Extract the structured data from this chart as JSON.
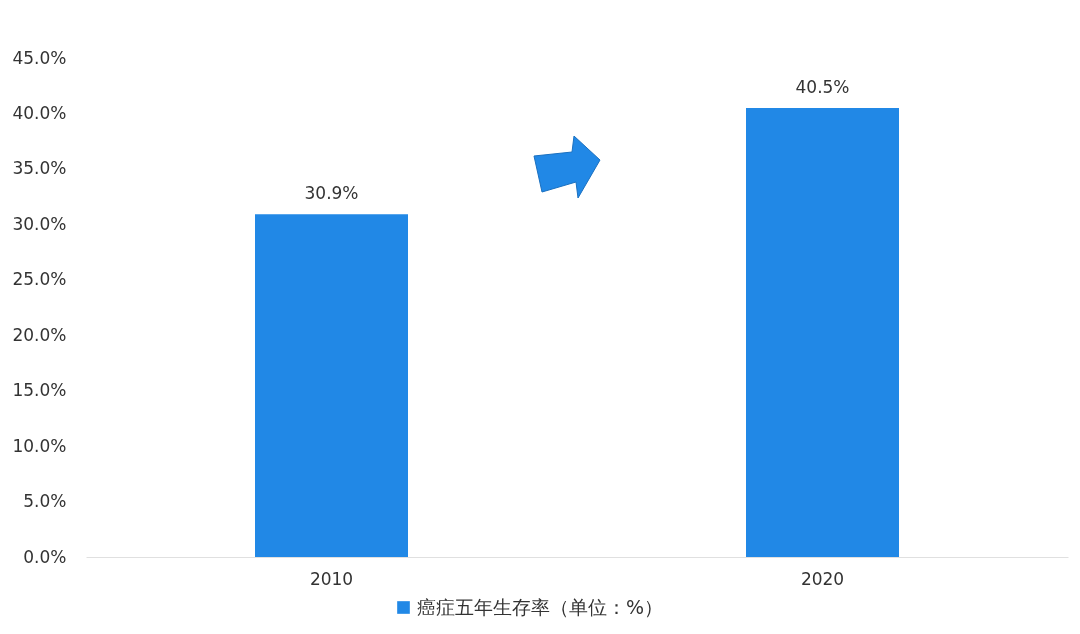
{
  "chart_data": {
    "type": "bar",
    "categories": [
      "2010",
      "2020"
    ],
    "series": [
      {
        "name": "癌症五年生存率（单位：%）",
        "color": "#2188e6",
        "values": [
          30.9,
          40.5
        ],
        "value_labels": [
          "30.9%",
          "40.5%"
        ]
      }
    ],
    "ylim": [
      0,
      45
    ],
    "yticks": [
      {
        "value": 0,
        "label": "0.0%"
      },
      {
        "value": 5,
        "label": "5.0%"
      },
      {
        "value": 10,
        "label": "10.0%"
      },
      {
        "value": 15,
        "label": "15.0%"
      },
      {
        "value": 20,
        "label": "20.0%"
      },
      {
        "value": 25,
        "label": "25.0%"
      },
      {
        "value": 30,
        "label": "30.0%"
      },
      {
        "value": 35,
        "label": "35.0%"
      },
      {
        "value": 40,
        "label": "40.0%"
      },
      {
        "value": 45,
        "label": "45.0%"
      }
    ],
    "grid": false,
    "legend": "bottom"
  }
}
